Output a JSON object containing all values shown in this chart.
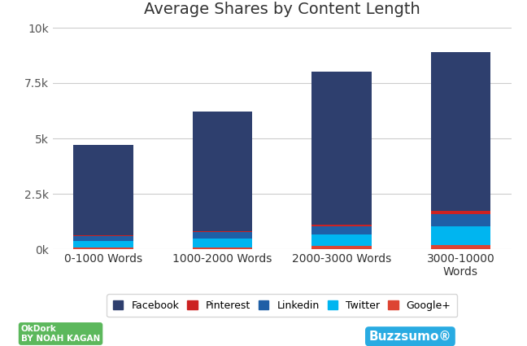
{
  "title": "Average Shares by Content Length",
  "categories": [
    "0-1000 Words",
    "1000-2000 Words",
    "2000-3000 Words",
    "3000-10000\nWords"
  ],
  "series": {
    "Google+": [
      70,
      90,
      130,
      180
    ],
    "Twitter": [
      280,
      370,
      520,
      850
    ],
    "Linkedin": [
      220,
      300,
      380,
      550
    ],
    "Pinterest": [
      40,
      55,
      70,
      160
    ],
    "Facebook": [
      4090,
      5385,
      6900,
      7160
    ]
  },
  "colors": {
    "Facebook": "#2e3f6e",
    "Pinterest": "#cc2222",
    "Linkedin": "#1f5fa6",
    "Twitter": "#00b5f0",
    "Google+": "#dd4433"
  },
  "bar_order": [
    "Google+",
    "Twitter",
    "Linkedin",
    "Pinterest",
    "Facebook"
  ],
  "legend_order": [
    "Facebook",
    "Pinterest",
    "Linkedin",
    "Twitter",
    "Google+"
  ],
  "ylim": [
    0,
    10000
  ],
  "yticks": [
    0,
    2500,
    5000,
    7500,
    10000
  ],
  "ytick_labels": [
    "0k",
    "2.5k",
    "5k",
    "7.5k",
    "10k"
  ],
  "background_color": "#ffffff",
  "bar_width": 0.5,
  "title_fontsize": 14,
  "tick_fontsize": 10,
  "legend_fontsize": 9,
  "okdork_color": "#5cb85c",
  "buzzsumo_color": "#29abe2"
}
